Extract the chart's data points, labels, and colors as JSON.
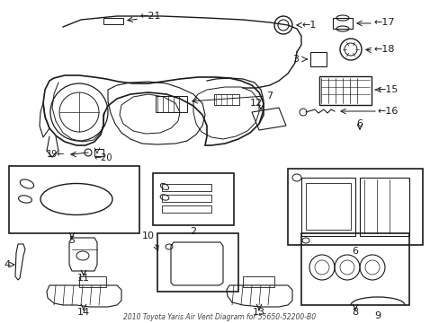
{
  "bg_color": "#ffffff",
  "line_color": "#1a1a1a",
  "diagram_title": "2010 Toyota Yaris Air Vent Diagram for 55650-52200-B0",
  "figsize": [
    4.89,
    3.6
  ],
  "dpi": 100
}
